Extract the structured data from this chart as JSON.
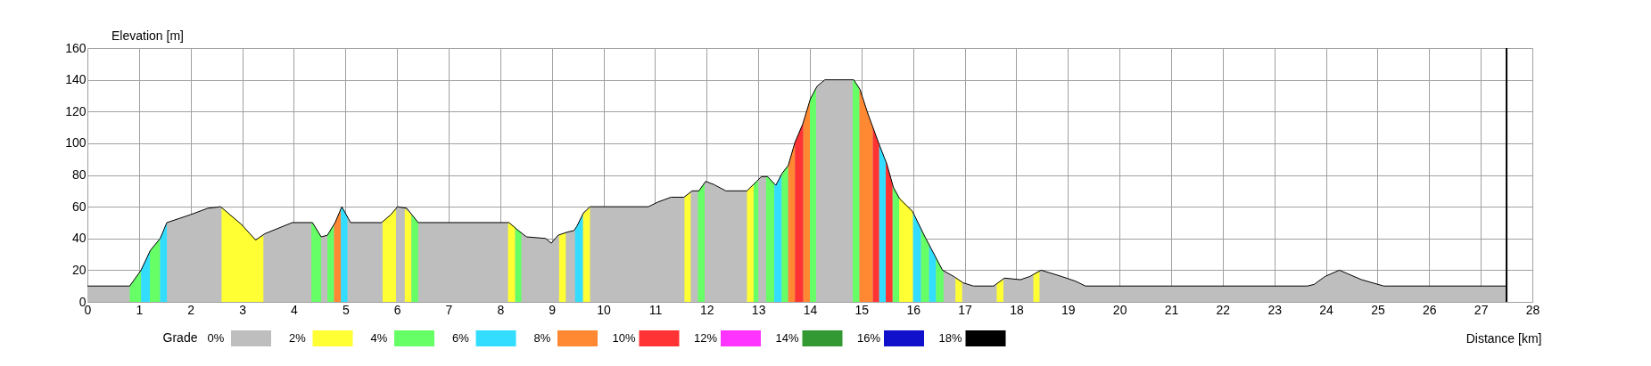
{
  "chart_data": {
    "type": "area",
    "xlabel": "Distance [km]",
    "ylabel": "Elevation [m]",
    "legend_title": "Grade",
    "legend": "bottom",
    "grid": true,
    "xlim": [
      0,
      28
    ],
    "xticks": [
      0,
      1,
      2,
      3,
      4,
      5,
      6,
      7,
      8,
      9,
      10,
      11,
      12,
      13,
      14,
      15,
      16,
      17,
      18,
      19,
      20,
      21,
      22,
      23,
      24,
      25,
      26,
      27,
      28
    ],
    "ylim": [
      0,
      160
    ],
    "yticks": [
      0,
      20,
      40,
      60,
      80,
      100,
      120,
      140,
      160
    ],
    "ref_lines": [
      {
        "axis": "x",
        "value": 27.5,
        "color": "#000000"
      }
    ],
    "series": [
      {
        "name": "0%",
        "color": "#bebebe",
        "x": [
          0,
          0.82,
          1.04,
          1.22,
          1.41,
          1.54,
          2.0,
          2.33,
          2.58,
          2.98,
          3.26,
          3.44,
          3.97,
          4.36,
          4.53,
          4.65,
          4.8,
          4.93,
          5.1,
          5.7,
          5.88,
          6.01,
          6.19,
          6.41,
          8.17,
          8.35,
          8.51,
          8.88,
          8.99,
          9.12,
          9.3,
          9.43,
          9.49,
          9.61,
          9.74,
          10.87,
          11.06,
          11.31,
          11.56,
          11.72,
          11.85,
          11.98,
          12.14,
          12.37,
          12.78,
          12.97,
          13.06,
          13.18,
          13.34,
          13.46,
          13.58,
          13.71,
          13.86,
          14.01,
          14.14,
          14.29,
          14.85,
          14.97,
          15.12,
          15.34,
          15.49,
          15.62,
          15.74,
          15.99,
          16.23,
          16.57,
          16.79,
          16.97,
          17.17,
          17.56,
          17.77,
          18.08,
          18.26,
          18.48,
          18.88,
          19.15,
          19.34,
          23.64,
          23.77,
          23.98,
          24.26,
          24.69,
          25.12,
          27.5
        ],
        "values": [
          10,
          10,
          20,
          32.5,
          40,
          50,
          55,
          59,
          60,
          49,
          39,
          43,
          50,
          50,
          41,
          42,
          50,
          60,
          50,
          50,
          55,
          60,
          59,
          50,
          50,
          45,
          41,
          40,
          37,
          42,
          44,
          45,
          48,
          56,
          60,
          60,
          63,
          66,
          66,
          70,
          70,
          76,
          74,
          70,
          70,
          76,
          79,
          79,
          73.5,
          81,
          86,
          100.5,
          112,
          128,
          136,
          140,
          140,
          134,
          119,
          99.5,
          87,
          72,
          65,
          57,
          41,
          20,
          16,
          12,
          10,
          10,
          15,
          14,
          16,
          20,
          16,
          13,
          10,
          10,
          11,
          16,
          20,
          14,
          10,
          10
        ]
      },
      {
        "name": "2%",
        "color": "#ffff33",
        "x": [
          2.6,
          2.98,
          3.26,
          3.41,
          null,
          5.72,
          5.88,
          5.98,
          null,
          6.15,
          6.28,
          null,
          8.15,
          8.17,
          8.29,
          null,
          9.14,
          9.27,
          null,
          9.6,
          9.74,
          null,
          11.57,
          11.69,
          null,
          12.78,
          12.91,
          null,
          15.73,
          15.99,
          16.0,
          null,
          16.82,
          16.95,
          null,
          17.62,
          17.75,
          null,
          18.33,
          18.45
        ],
        "values": [
          59.5,
          49,
          39,
          42,
          null,
          50.5,
          55,
          59,
          null,
          59,
          55,
          null,
          50,
          50,
          47,
          null,
          42,
          44,
          null,
          55,
          60,
          null,
          66,
          69,
          null,
          70,
          74,
          null,
          66,
          57,
          56,
          null,
          15.5,
          12.5,
          null,
          11.5,
          14.5,
          null,
          17.3,
          19.5
        ]
      },
      {
        "name": "4%",
        "color": "#66ff66",
        "x": [
          0.82,
          1.04,
          null,
          1.21,
          1.41,
          null,
          4.34,
          4.36,
          4.53,
          null,
          4.65,
          4.78,
          null,
          6.28,
          6.41,
          null,
          8.29,
          8.35,
          8.41,
          null,
          11.83,
          11.85,
          11.96,
          null,
          12.91,
          12.97,
          13.0,
          null,
          13.15,
          13.18,
          13.31,
          null,
          13.45,
          13.58,
          null,
          14.0,
          14.12,
          null,
          14.83,
          14.85,
          14.96,
          null,
          15.6,
          15.73,
          null,
          16.15,
          16.23,
          16.31,
          null,
          16.44,
          16.57,
          16.59
        ],
        "values": [
          10,
          20,
          null,
          32,
          40,
          null,
          50,
          50,
          41,
          null,
          42,
          49,
          null,
          55,
          50,
          null,
          47,
          45,
          43.5,
          null,
          70,
          70,
          75,
          null,
          74,
          76,
          77,
          null,
          79,
          79,
          74.5,
          null,
          80,
          86,
          null,
          127,
          135,
          null,
          140,
          140,
          134.5,
          null,
          74,
          65.5,
          null,
          46,
          41,
          36,
          null,
          28,
          20,
          19.6
        ]
      },
      {
        "name": "6%",
        "color": "#33ddff",
        "x": [
          1.04,
          1.21,
          null,
          1.41,
          1.54,
          null,
          4.91,
          4.93,
          5.04,
          null,
          9.45,
          9.49,
          9.6,
          null,
          13.31,
          13.34,
          13.45,
          null,
          15.34,
          15.47,
          null,
          16.0,
          16.15,
          null,
          16.31,
          16.44
        ],
        "values": [
          20,
          32,
          null,
          40,
          50,
          null,
          58.5,
          60,
          53.5,
          null,
          46,
          48,
          55,
          null,
          74.5,
          73.5,
          80,
          null,
          99.5,
          88.5,
          null,
          56,
          46,
          null,
          36,
          28
        ]
      },
      {
        "name": "8%",
        "color": "#ff8833",
        "x": [
          4.78,
          4.8,
          4.91,
          null,
          13.58,
          13.71,
          null,
          13.87,
          14.0,
          null,
          14.96,
          15.12,
          15.22
        ],
        "values": [
          49,
          50,
          58.5,
          null,
          86,
          100.5,
          null,
          113,
          127,
          null,
          134.5,
          119,
          110
        ]
      },
      {
        "name": "10%",
        "color": "#ff3333",
        "x": [
          13.71,
          13.86,
          13.87,
          null,
          15.22,
          15.34,
          null,
          15.47,
          15.49,
          15.6
        ],
        "values": [
          100.5,
          112,
          113,
          null,
          110,
          99.5,
          null,
          88.5,
          87,
          74
        ]
      },
      {
        "name": "12%",
        "color": "#ff33ff"
      },
      {
        "name": "14%",
        "color": "#339933"
      },
      {
        "name": "16%",
        "color": "#1111cc"
      },
      {
        "name": "18%",
        "color": "#000000"
      }
    ]
  }
}
